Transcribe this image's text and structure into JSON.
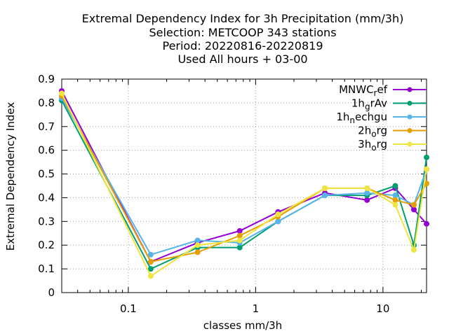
{
  "chart_data": {
    "type": "line",
    "title_lines": [
      "Extremal Dependency Index  for 3h Precipitation (mm/3h)",
      "Selection: METCOOP    343 stations",
      "Period: 20220816-20220819",
      "Used  All hours  + 03-00"
    ],
    "xlabel": "classes mm/3h",
    "ylabel": "Extremal Dependency Index",
    "x_scale": "log",
    "xlim": [
      0.03,
      22
    ],
    "ylim": [
      0,
      0.9
    ],
    "grid": true,
    "legend_position": "top-right",
    "x_ticks": [
      {
        "value": 0.1,
        "label": "0.1"
      },
      {
        "value": 1,
        "label": "1"
      },
      {
        "value": 10,
        "label": "10"
      }
    ],
    "y_ticks": [
      {
        "value": 0,
        "label": "0"
      },
      {
        "value": 0.1,
        "label": "0.1"
      },
      {
        "value": 0.2,
        "label": "0.2"
      },
      {
        "value": 0.3,
        "label": "0.3"
      },
      {
        "value": 0.4,
        "label": "0.4"
      },
      {
        "value": 0.5,
        "label": "0.5"
      },
      {
        "value": 0.6,
        "label": "0.6"
      },
      {
        "value": 0.7,
        "label": "0.7"
      },
      {
        "value": 0.8,
        "label": "0.8"
      },
      {
        "value": 0.9,
        "label": "0.9"
      }
    ],
    "x": [
      0.03,
      0.15,
      0.35,
      0.75,
      1.5,
      3.5,
      7.5,
      12.5,
      17.5,
      22
    ],
    "series": [
      {
        "legend_main": "MNWC",
        "legend_sub": "r",
        "legend_tail": "ef",
        "color": "#9400d3",
        "marker": "circle",
        "values": [
          0.85,
          0.13,
          0.21,
          0.26,
          0.34,
          0.42,
          0.39,
          0.44,
          0.35,
          0.29
        ]
      },
      {
        "legend_main": "1h",
        "legend_sub": "g",
        "legend_tail": "rAv",
        "color": "#009e73",
        "marker": "circle",
        "values": [
          0.81,
          0.1,
          0.19,
          0.19,
          0.3,
          0.41,
          0.41,
          0.45,
          0.2,
          0.57
        ]
      },
      {
        "legend_main": "1h",
        "legend_sub": "n",
        "legend_tail": "echgu",
        "color": "#56b4e9",
        "marker": "circle",
        "values": [
          0.82,
          0.16,
          0.22,
          0.21,
          0.3,
          0.41,
          0.42,
          0.41,
          0.37,
          0.52
        ]
      },
      {
        "legend_main": "2h",
        "legend_sub": "o",
        "legend_tail": "rg",
        "color": "#e69f00",
        "marker": "circle",
        "values": [
          0.83,
          0.13,
          0.17,
          0.24,
          0.32,
          0.44,
          0.44,
          0.39,
          0.37,
          0.46
        ]
      },
      {
        "legend_main": "3h",
        "legend_sub": "o",
        "legend_tail": "rg",
        "color": "#f0e442",
        "marker": "circle",
        "values": [
          0.84,
          0.07,
          0.2,
          0.22,
          0.33,
          0.44,
          0.44,
          0.37,
          0.18,
          0.52
        ]
      }
    ]
  }
}
